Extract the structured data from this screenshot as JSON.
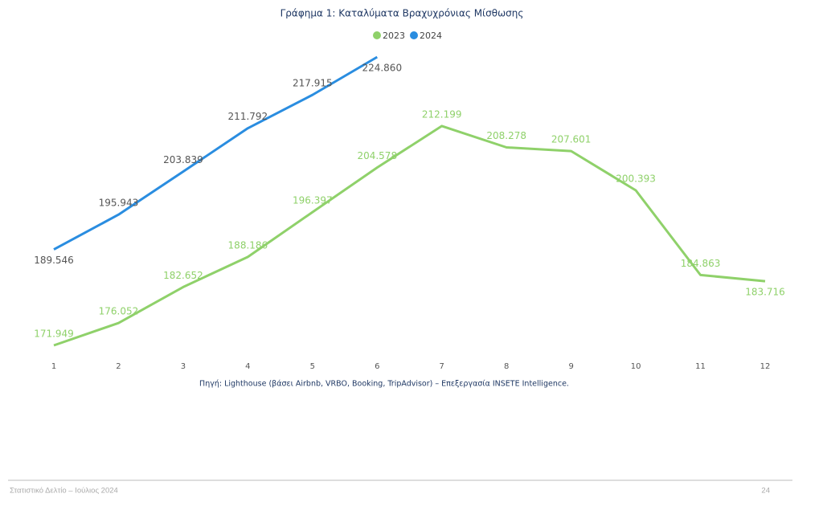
{
  "chart_data": {
    "type": "line",
    "title": "Γράφημα 1: Καταλύματα Βραχυχρόνιας Μίσθωσης",
    "categories": [
      "1",
      "2",
      "3",
      "4",
      "5",
      "6",
      "7",
      "8",
      "9",
      "10",
      "11",
      "12"
    ],
    "series": [
      {
        "name": "2023",
        "color": "#8fd16a",
        "values": [
          171949,
          176052,
          182652,
          188186,
          196397,
          204578,
          212199,
          208278,
          207601,
          200393,
          184863,
          183716
        ],
        "value_labels": [
          "171.949",
          "176.052",
          "182.652",
          "188.186",
          "196.397",
          "204.578",
          "212.199",
          "208.278",
          "207.601",
          "200.393",
          "184.863",
          "183.716"
        ]
      },
      {
        "name": "2024",
        "color": "#2a8de0",
        "values": [
          189546,
          195943,
          203839,
          211792,
          217915,
          224860,
          null,
          null,
          null,
          null,
          null,
          null
        ],
        "value_labels": [
          "189.546",
          "195.943",
          "203.839",
          "211.792",
          "217.915",
          "224.860",
          null,
          null,
          null,
          null,
          null,
          null
        ]
      }
    ],
    "legend": "top"
  },
  "source": "Πηγή: Lighthouse (βάσει Airbnb, VRBO, Booking, TripAdvisor) – Επεξεργασία INSETE Intelligence.",
  "footer": {
    "text": "Στατιστικό Δελτίο – Ιούλιος 2024",
    "page": "24"
  }
}
